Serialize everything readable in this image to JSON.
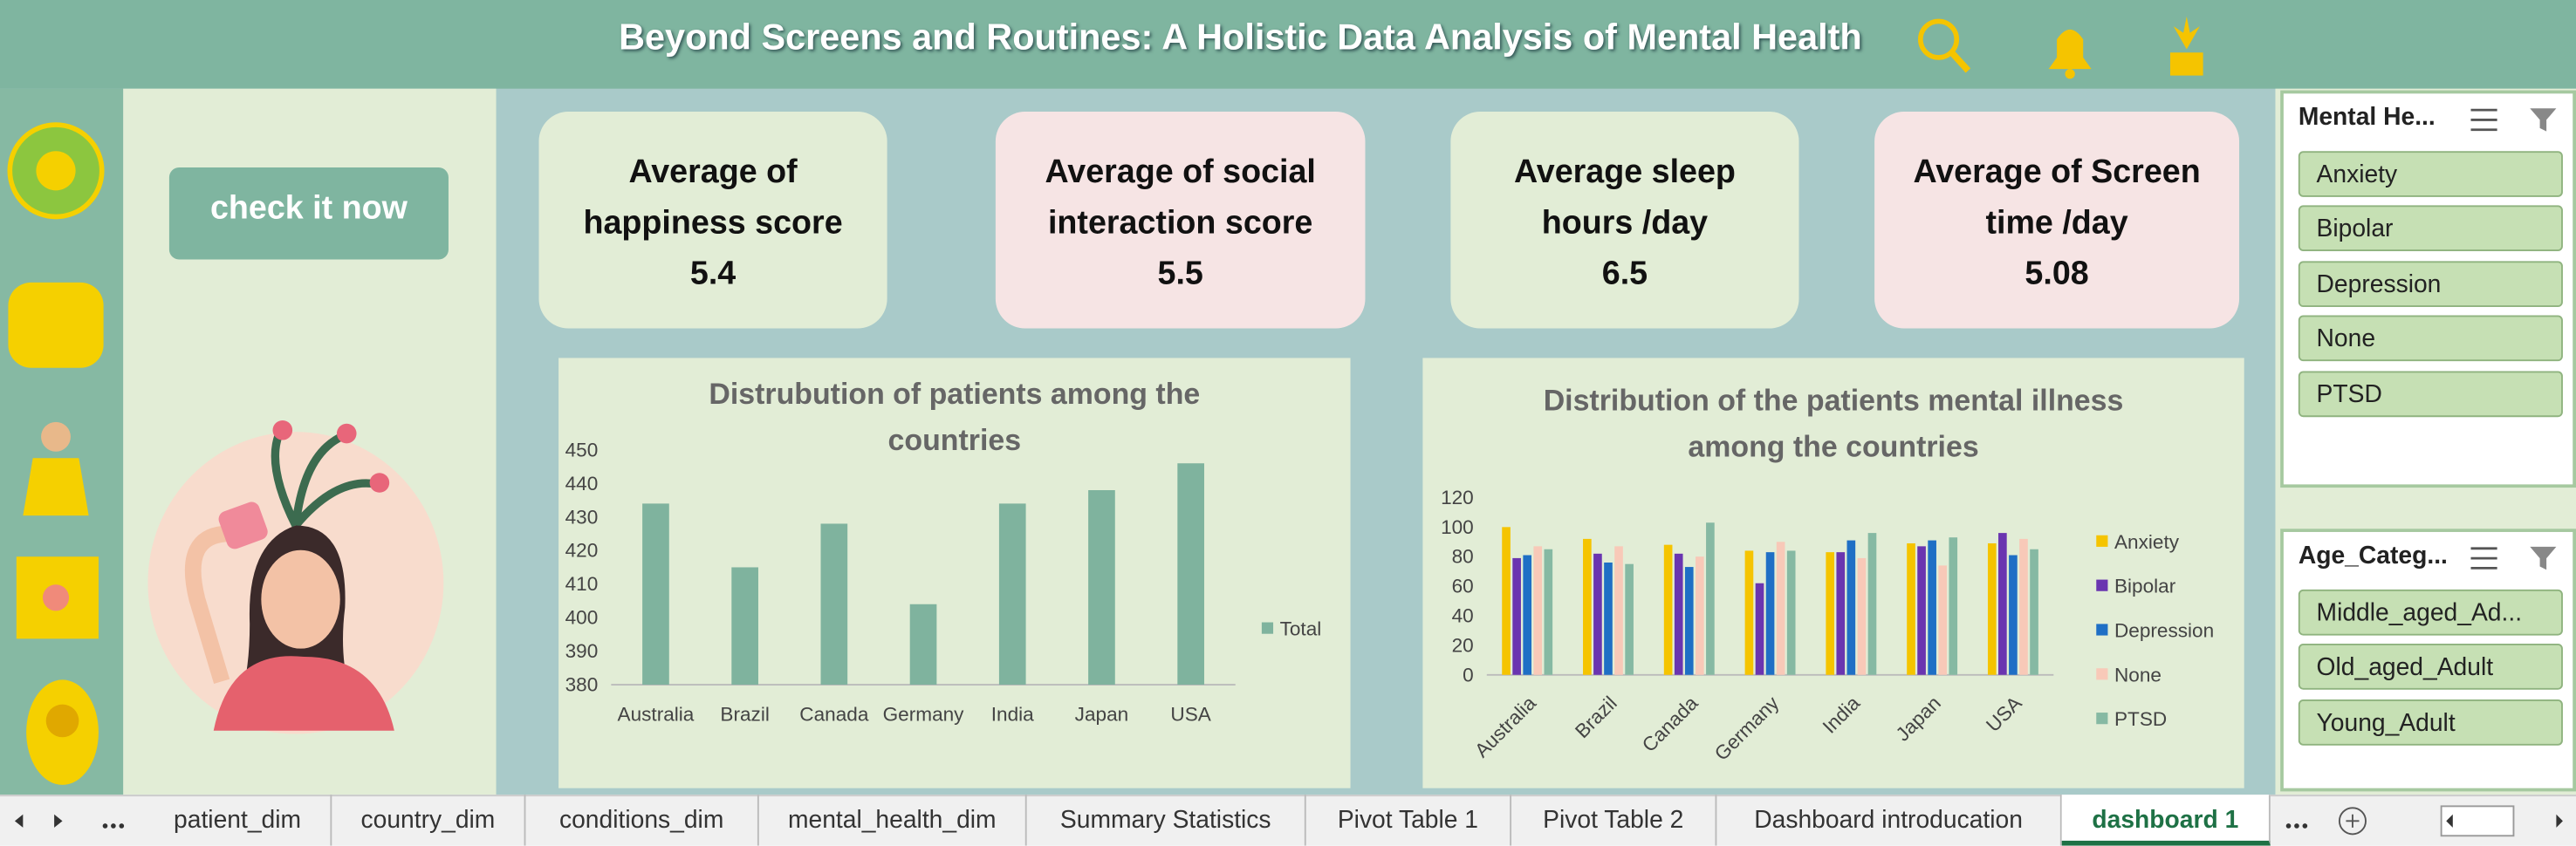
{
  "header": {
    "title": "Beyond Screens and Routines: A Holistic Data Analysis of Mental Health"
  },
  "button": {
    "label": "check it now"
  },
  "kpis": [
    {
      "label": "Average of happiness score",
      "value": 5.4
    },
    {
      "label": "Average of social interaction score",
      "value": 5.5
    },
    {
      "label": "Average sleep hours /day",
      "value": 6.5
    },
    {
      "label": "Average of Screen time /day",
      "value": 5.08
    }
  ],
  "chart_data": [
    {
      "type": "bar",
      "title": "Distrubution of patients among the countries",
      "categories": [
        "Australia",
        "Brazil",
        "Canada",
        "Germany",
        "India",
        "Japan",
        "USA"
      ],
      "series": [
        {
          "name": "Total",
          "color": "#7fb39e",
          "values": [
            434,
            415,
            428,
            404,
            434,
            438,
            446
          ]
        }
      ],
      "ylim": [
        380,
        450
      ],
      "yticks": [
        380,
        390,
        400,
        410,
        420,
        430,
        440,
        450
      ],
      "grid": false
    },
    {
      "type": "bar",
      "title": "Distribution of the patients mental illness among the countries",
      "categories": [
        "Australia",
        "Brazil",
        "Canada",
        "Germany",
        "India",
        "Japan",
        "USA"
      ],
      "series": [
        {
          "name": "Anxiety",
          "color": "#f5c400",
          "values": [
            100,
            92,
            88,
            84,
            83,
            89,
            89
          ]
        },
        {
          "name": "Bipolar",
          "color": "#6a35b0",
          "values": [
            79,
            82,
            82,
            62,
            83,
            87,
            96
          ]
        },
        {
          "name": "Depression",
          "color": "#1f6fc5",
          "values": [
            81,
            76,
            73,
            83,
            91,
            91,
            81
          ]
        },
        {
          "name": "None",
          "color": "#f8c9b8",
          "values": [
            87,
            87,
            80,
            90,
            79,
            74,
            92
          ]
        },
        {
          "name": "PTSD",
          "color": "#86b9a3",
          "values": [
            85,
            75,
            103,
            84,
            96,
            93,
            85
          ]
        }
      ],
      "ylim": [
        0,
        120
      ],
      "yticks": [
        0,
        20,
        40,
        60,
        80,
        100,
        120
      ],
      "grid": false
    }
  ],
  "slicers": [
    {
      "title": "Mental He...",
      "items": [
        "Anxiety",
        "Bipolar",
        "Depression",
        "None",
        "PTSD"
      ]
    },
    {
      "title": "Age_Categ...",
      "items": [
        "Middle_aged_Ad...",
        "Old_aged_Adult",
        "Young_Adult"
      ]
    }
  ],
  "tabs": {
    "sheets": [
      "patient_dim",
      "country_dim",
      "conditions_dim",
      "mental_health_dim",
      "Summary Statistics",
      "Pivot Table 1",
      "Pivot Table 2",
      "Dashboard introducation",
      "dashboard 1"
    ],
    "active_index": 8
  }
}
